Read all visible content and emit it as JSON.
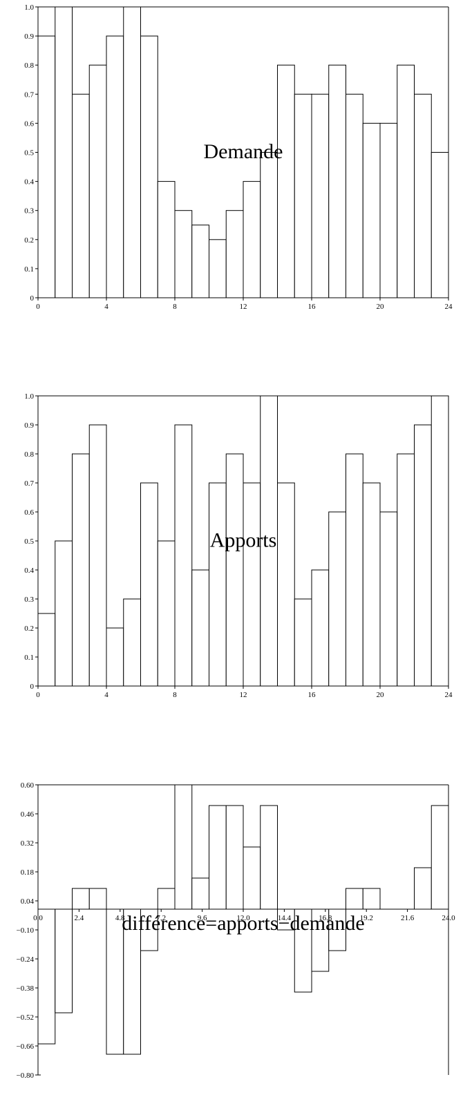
{
  "chart_data": [
    {
      "type": "bar",
      "title": "Demande",
      "x": [
        0,
        1,
        2,
        3,
        4,
        5,
        6,
        7,
        8,
        9,
        10,
        11,
        12,
        13,
        14,
        15,
        16,
        17,
        18,
        19,
        20,
        21,
        22,
        23
      ],
      "values": [
        0.9,
        1.0,
        0.7,
        0.8,
        0.9,
        1.0,
        0.9,
        0.4,
        0.3,
        0.25,
        0.2,
        0.3,
        0.4,
        0.5,
        0.8,
        0.7,
        0.7,
        0.8,
        0.7,
        0.6,
        0.6,
        0.8,
        0.7,
        0.5
      ],
      "bar_width": 1,
      "xlim": [
        0,
        24
      ],
      "ylim": [
        0,
        1.0
      ],
      "xticks": [
        "0",
        "4",
        "8",
        "12",
        "16",
        "20",
        "24"
      ],
      "xtick_values": [
        0,
        4,
        8,
        12,
        16,
        20,
        24
      ],
      "yticks": [
        "0",
        "0.1",
        "0.2",
        "0.3",
        "0.4",
        "0.5",
        "0.6",
        "0.7",
        "0.8",
        "0.9",
        "1.0"
      ],
      "ytick_values": [
        0,
        0.1,
        0.2,
        0.3,
        0.4,
        0.5,
        0.6,
        0.7,
        0.8,
        0.9,
        1.0
      ],
      "title_position": [
        12,
        0.48
      ]
    },
    {
      "type": "bar",
      "title": "Apports",
      "x": [
        0,
        1,
        2,
        3,
        4,
        5,
        6,
        7,
        8,
        9,
        10,
        11,
        12,
        13,
        14,
        15,
        16,
        17,
        18,
        19,
        20,
        21,
        22,
        23
      ],
      "values": [
        0.25,
        0.5,
        0.8,
        0.9,
        0.2,
        0.3,
        0.7,
        0.5,
        0.9,
        0.4,
        0.7,
        0.8,
        0.7,
        1.0,
        0.7,
        0.3,
        0.4,
        0.6,
        0.8,
        0.7,
        0.6,
        0.8,
        0.9,
        1.0
      ],
      "bar_width": 1,
      "xlim": [
        0,
        24
      ],
      "ylim": [
        0,
        1.0
      ],
      "xticks": [
        "0",
        "4",
        "8",
        "12",
        "16",
        "20",
        "24"
      ],
      "xtick_values": [
        0,
        4,
        8,
        12,
        16,
        20,
        24
      ],
      "yticks": [
        "0",
        "0.1",
        "0.2",
        "0.3",
        "0.4",
        "0.5",
        "0.6",
        "0.7",
        "0.8",
        "0.9",
        "1.0"
      ],
      "ytick_values": [
        0,
        0.1,
        0.2,
        0.3,
        0.4,
        0.5,
        0.6,
        0.7,
        0.8,
        0.9,
        1.0
      ],
      "title_position": [
        12,
        0.48
      ]
    },
    {
      "type": "bar",
      "title": "différence=apports−demande",
      "x": [
        0,
        1,
        2,
        3,
        4,
        5,
        6,
        7,
        8,
        9,
        10,
        11,
        12,
        13,
        14,
        15,
        16,
        17,
        18,
        19,
        20,
        21,
        22,
        23
      ],
      "values": [
        -0.65,
        -0.5,
        0.1,
        0.1,
        -0.7,
        -0.7,
        -0.2,
        0.1,
        0.6,
        0.15,
        0.5,
        0.5,
        0.3,
        0.5,
        -0.1,
        -0.4,
        -0.3,
        -0.2,
        0.1,
        0.1,
        0.0,
        0.0,
        0.2,
        0.5
      ],
      "bar_width": 1,
      "xlim": [
        0,
        24
      ],
      "ylim": [
        -0.8,
        0.6
      ],
      "xticks": [
        "0.0",
        "2.4",
        "4.8",
        "7.2",
        "9.6",
        "12.0",
        "14.4",
        "16.8",
        "19.2",
        "21.6",
        "24.0"
      ],
      "xtick_values": [
        0,
        2.4,
        4.8,
        7.2,
        9.6,
        12.0,
        14.4,
        16.8,
        19.2,
        21.6,
        24.0
      ],
      "yticks": [
        "0.60",
        "0.46",
        "0.32",
        "0.18",
        "0.04",
        "−0.10",
        "−0.24",
        "−0.38",
        "−0.52",
        "−0.66",
        "−0.80"
      ],
      "ytick_values": [
        0.6,
        0.46,
        0.32,
        0.18,
        0.04,
        -0.1,
        -0.24,
        -0.38,
        -0.52,
        -0.66,
        -0.8
      ],
      "title_position": [
        12,
        -0.1
      ]
    }
  ]
}
